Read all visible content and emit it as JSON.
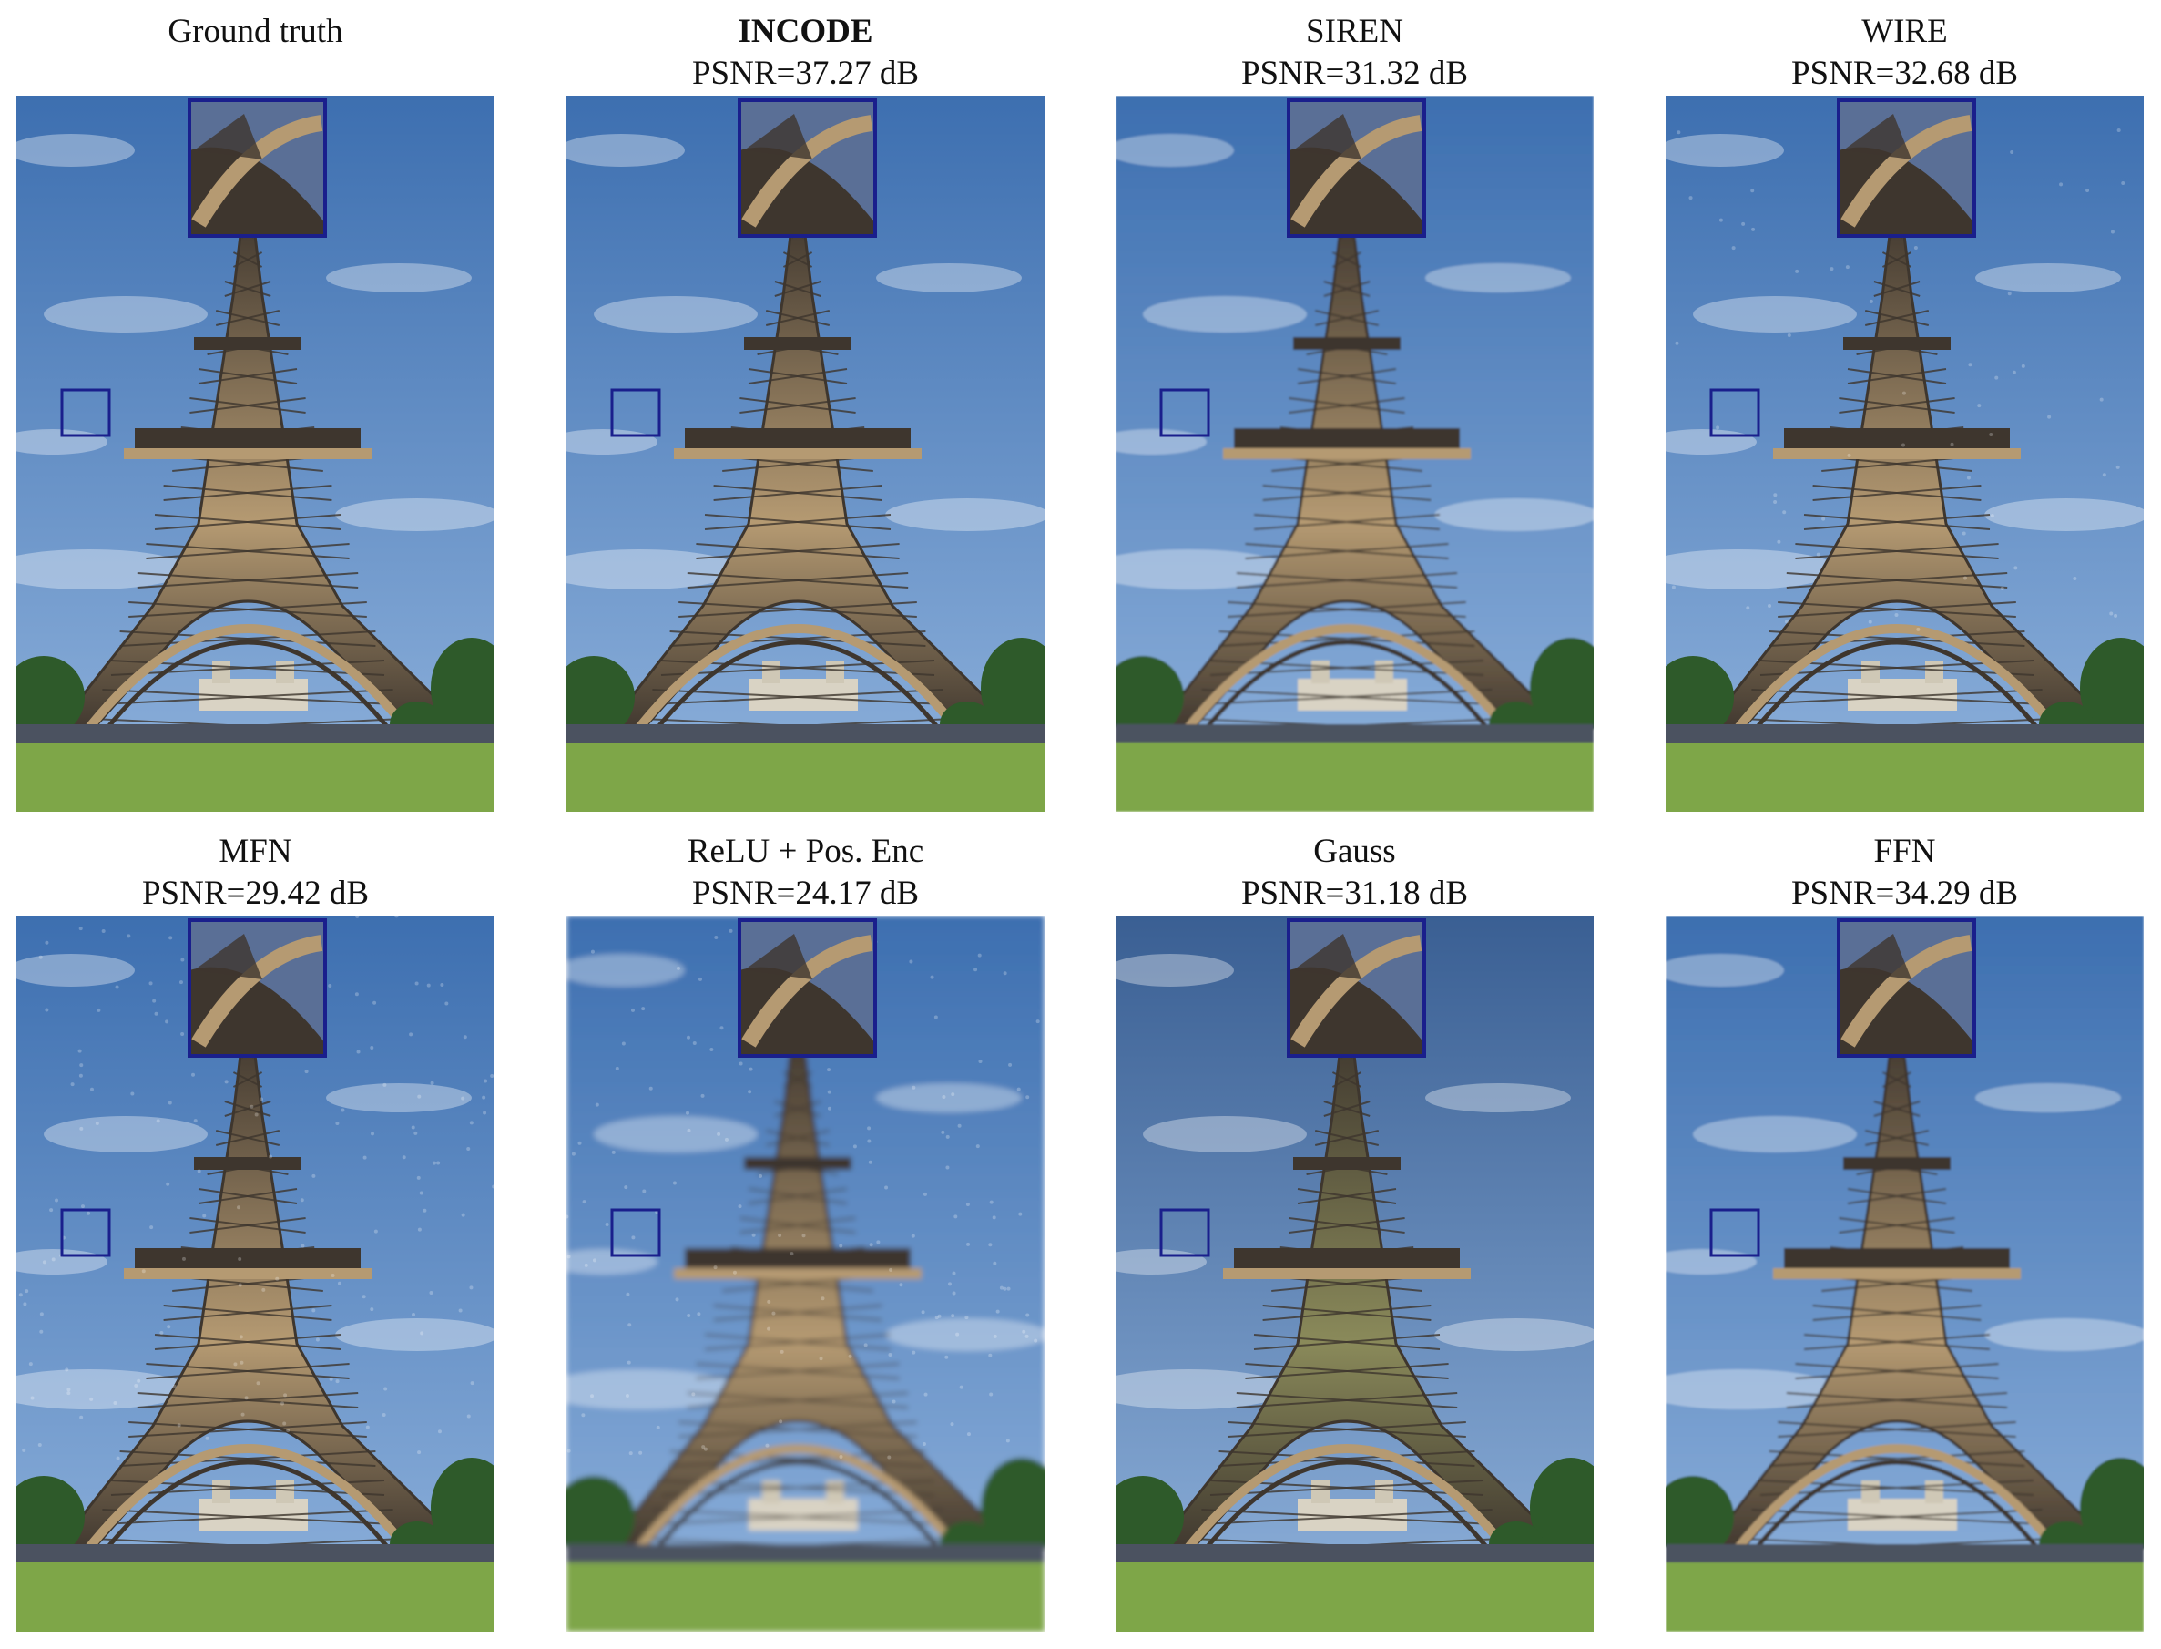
{
  "panels": [
    {
      "title": "Ground truth",
      "psnr": "",
      "bold": false,
      "quality": "sharp"
    },
    {
      "title": "INCODE",
      "psnr": "PSNR=37.27 dB",
      "bold": true,
      "quality": "sharp"
    },
    {
      "title": "SIREN",
      "psnr": "PSNR=31.32 dB",
      "bold": false,
      "quality": "slight-blur"
    },
    {
      "title": "WIRE",
      "psnr": "PSNR=32.68 dB",
      "bold": false,
      "quality": "slight-noise"
    },
    {
      "title": "MFN",
      "psnr": "PSNR=29.42 dB",
      "bold": false,
      "quality": "noise"
    },
    {
      "title": "ReLU + Pos. Enc",
      "psnr": "PSNR=24.17 dB",
      "bold": false,
      "quality": "blur"
    },
    {
      "title": "Gauss",
      "psnr": "PSNR=31.18 dB",
      "bold": false,
      "quality": "color-shift"
    },
    {
      "title": "FFN",
      "psnr": "PSNR=34.29 dB",
      "bold": false,
      "quality": "slight-blur"
    }
  ],
  "colors": {
    "sky_top": "#3d6fb0",
    "sky_bottom": "#8fb2dc",
    "tower_dark": "#3e362e",
    "tower_light": "#b59a72",
    "grass": "#7ea648",
    "trees": "#2e5a2a",
    "zoom_box": "#1a1f8c"
  }
}
